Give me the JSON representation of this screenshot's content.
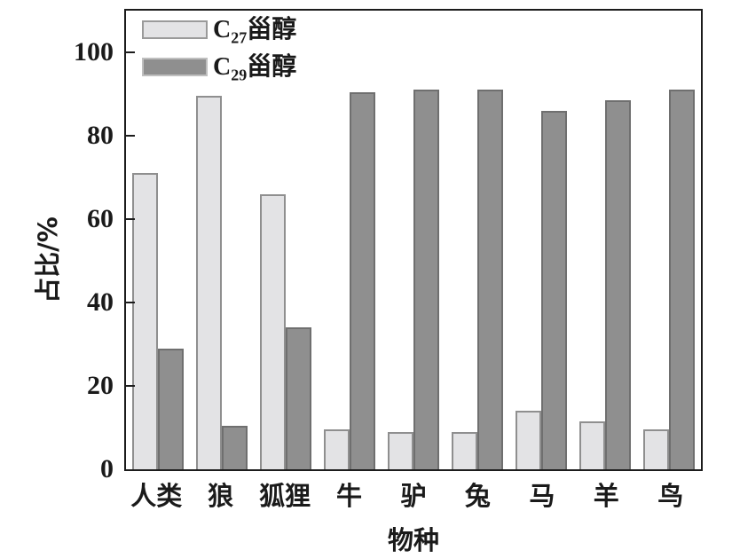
{
  "chart_data": {
    "type": "bar",
    "title": "",
    "xlabel": "物种",
    "ylabel": "占比/%",
    "ylim": [
      0,
      110
    ],
    "yticks": [
      0,
      20,
      40,
      60,
      80,
      100
    ],
    "grid": false,
    "legend_position": "top-left-inside",
    "plot_frame": "full-box",
    "categories": [
      "人类",
      "狼",
      "狐狸",
      "牛",
      "驴",
      "兔",
      "马",
      "羊",
      "鸟"
    ],
    "series": [
      {
        "name": "C27甾醇",
        "values": [
          71,
          89.5,
          66,
          9.5,
          9,
          9,
          14,
          11.5,
          9.5
        ],
        "fill": "#e3e3e5",
        "border": "#8f8f8f"
      },
      {
        "name": "C29甾醇",
        "values": [
          29,
          10.5,
          34,
          90.5,
          91,
          91,
          86,
          88.5,
          91
        ],
        "fill": "#8f8f8f",
        "border": "#6f6f6f"
      }
    ]
  },
  "legend": {
    "items": [
      {
        "prefix": "C",
        "sub": "27",
        "suffix": "甾醇"
      },
      {
        "prefix": "C",
        "sub": "29",
        "suffix": "甾醇"
      }
    ]
  },
  "axes": {
    "x_title": "物种",
    "y_title": "占比/%"
  },
  "colors": {
    "axis": "#1c1c1c",
    "background": "#ffffff",
    "c27_fill": "#e3e3e5",
    "c27_border": "#8f8f8f",
    "c29_fill": "#8f8f8f",
    "c29_border": "#6f6f6f"
  }
}
